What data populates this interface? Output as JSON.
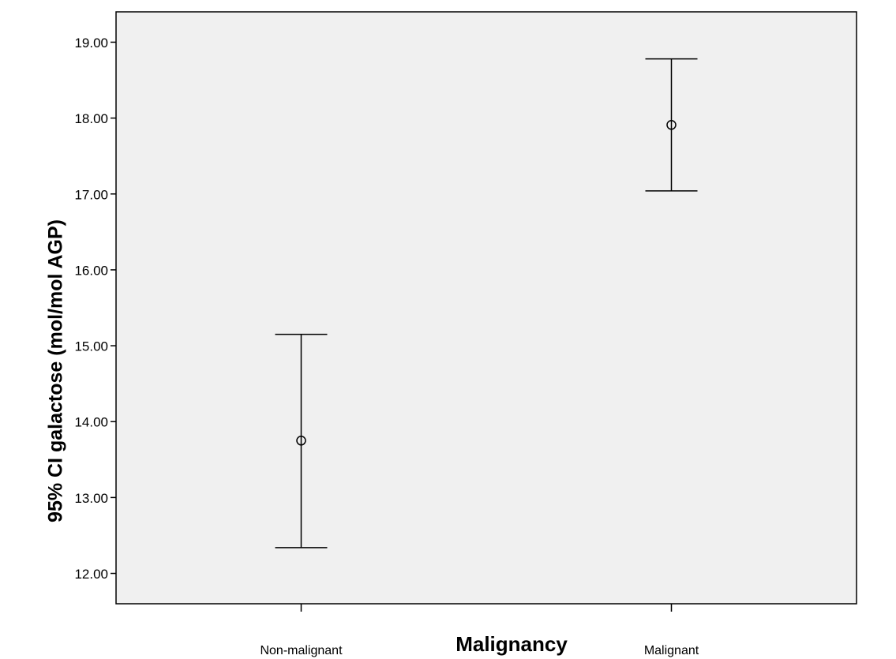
{
  "chart_data": {
    "type": "errorbar",
    "y_label": "95% CI galactose  (mol/mol AGP)",
    "x_label": "Malignancy",
    "categories": [
      "Non-malignant",
      "Malignant"
    ],
    "values": [
      13.75,
      17.91
    ],
    "lower": [
      12.34,
      17.04
    ],
    "upper": [
      15.15,
      18.78
    ],
    "color": "#000000",
    "background": "#f0f0f0",
    "ylim": [
      11.6,
      19.4
    ],
    "yticks": [
      {
        "value": 12,
        "label": "12.00"
      },
      {
        "value": 13,
        "label": "13.00"
      },
      {
        "value": 14,
        "label": "14.00"
      },
      {
        "value": 15,
        "label": "15.00"
      },
      {
        "value": 16,
        "label": "16.00"
      },
      {
        "value": 17,
        "label": "17.00"
      },
      {
        "value": 18,
        "label": "18.00"
      },
      {
        "value": 19,
        "label": "19.00"
      }
    ]
  }
}
